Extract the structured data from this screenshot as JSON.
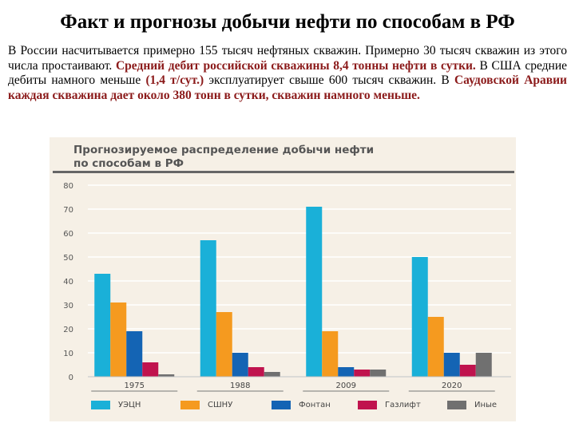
{
  "page": {
    "title": "Факт и прогнозы добычи нефти по способам в РФ",
    "paragraph": [
      {
        "text": "В России насчитывается примерно 155 тысяч нефтяных скважин. Примерно 30 тысяч скважин из этого числа простаивают. ",
        "style": "normal"
      },
      {
        "text": "Средний дебит российской скважины 8,4 тонны нефти в сутки.",
        "style": "red"
      },
      {
        "text": " В США средние дебиты намного меньше ",
        "style": "normal"
      },
      {
        "text": "(1,4 т/сут.)",
        "style": "red"
      },
      {
        "text": " эксплуатирует свыше 600 тысяч скважин. В ",
        "style": "normal"
      },
      {
        "text": "Саудовской Аравии каждая скважина дает около 380 тонн в сутки, скважин намного меньше.",
        "style": "red"
      }
    ]
  },
  "chart_data": {
    "type": "bar",
    "title": "Прогнозируемое распределение добычи нефти по способам в РФ",
    "title_lines": [
      "Прогнозируемое распределение добычи нефти",
      "по способам в РФ"
    ],
    "categories": [
      "1975",
      "1988",
      "2009",
      "2020"
    ],
    "ylim": [
      0,
      80
    ],
    "yticks": [
      0,
      10,
      20,
      30,
      40,
      50,
      60,
      70,
      80
    ],
    "grid": true,
    "legend_position": "bottom",
    "series": [
      {
        "name": "УЭЦН",
        "color": "#1ab0d8",
        "values": [
          43,
          57,
          71,
          50
        ]
      },
      {
        "name": "СШНУ",
        "color": "#f59a1f",
        "values": [
          31,
          27,
          19,
          25
        ]
      },
      {
        "name": "Фонтан",
        "color": "#1464b4",
        "values": [
          19,
          10,
          4,
          10
        ]
      },
      {
        "name": "Газлифт",
        "color": "#c0134e",
        "values": [
          6,
          4,
          3,
          5
        ]
      },
      {
        "name": "Иные",
        "color": "#707070",
        "values": [
          1,
          2,
          3,
          10
        ]
      }
    ]
  }
}
